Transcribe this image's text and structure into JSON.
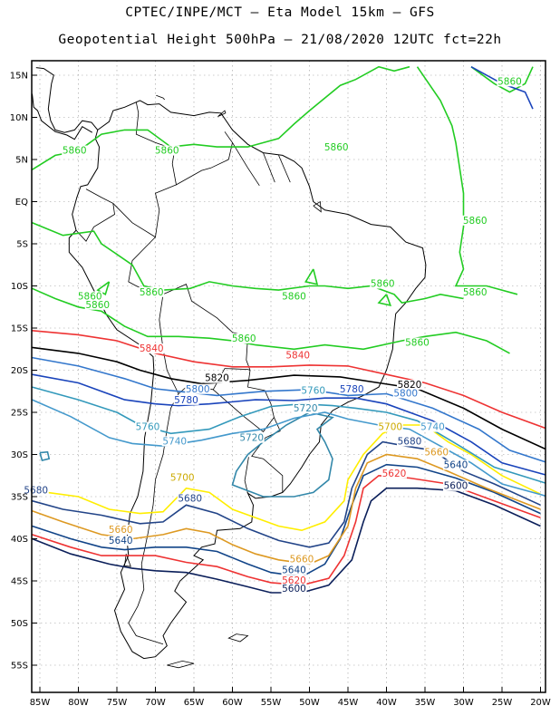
{
  "title": {
    "line1": "CPTEC/INPE/MCT –  Eta Model 15km – GFS",
    "line2": "Geopotential Height 500hPa – 21/08/2020 12UTC fct=22h"
  },
  "axes": {
    "lon_ticks": [
      "85W",
      "80W",
      "75W",
      "70W",
      "65W",
      "60W",
      "55W",
      "50W",
      "45W",
      "40W",
      "35W",
      "30W",
      "25W",
      "20W"
    ],
    "lat_ticks": [
      "15N",
      "10N",
      "5N",
      "EQ",
      "5S",
      "10S",
      "15S",
      "20S",
      "25S",
      "30S",
      "35S",
      "40S",
      "45S",
      "50S",
      "55S"
    ]
  },
  "contours": [
    {
      "level": "5860",
      "color": "#22cc22"
    },
    {
      "level": "5840",
      "color": "#ee3333"
    },
    {
      "level": "5820",
      "color": "#000000"
    },
    {
      "level": "5800",
      "color": "#3377cc"
    },
    {
      "level": "5780",
      "color": "#1a44bb"
    },
    {
      "level": "5760",
      "color": "#3399bb"
    },
    {
      "level": "5740",
      "color": "#4499cc"
    },
    {
      "level": "5720",
      "color": "#3388aa"
    },
    {
      "level": "5700",
      "color": "#ffee00"
    },
    {
      "level": "5680",
      "color": "#224488"
    },
    {
      "level": "5660",
      "color": "#dd9922"
    },
    {
      "level": "5640",
      "color": "#114488"
    },
    {
      "level": "5620",
      "color": "#ee3333"
    },
    {
      "level": "5600",
      "color": "#0b1f5a"
    }
  ],
  "labels": [
    {
      "text": "5860",
      "lon": 46.5,
      "lat": 6.2,
      "color": "#22cc22"
    },
    {
      "text": "5860",
      "lon": 68.5,
      "lat": 5.8,
      "color": "#22cc22"
    },
    {
      "text": "5860",
      "lon": 80.5,
      "lat": 5.8,
      "color": "#22cc22"
    },
    {
      "text": "5860",
      "lon": 24.0,
      "lat": 14.0,
      "color": "#22cc22"
    },
    {
      "text": "5860",
      "lon": 28.5,
      "lat": -2.5,
      "color": "#22cc22"
    },
    {
      "text": "5860",
      "lon": 28.5,
      "lat": -11.0,
      "color": "#22cc22"
    },
    {
      "text": "5860",
      "lon": 70.5,
      "lat": -11.0,
      "color": "#22cc22"
    },
    {
      "text": "5860",
      "lon": 78.5,
      "lat": -11.5,
      "color": "#22cc22"
    },
    {
      "text": "5860",
      "lon": 77.5,
      "lat": -12.5,
      "color": "#22cc22"
    },
    {
      "text": "5860",
      "lon": 52.0,
      "lat": -11.5,
      "color": "#22cc22"
    },
    {
      "text": "5860",
      "lon": 40.5,
      "lat": -10.0,
      "color": "#22cc22"
    },
    {
      "text": "5860",
      "lon": 58.5,
      "lat": -16.5,
      "color": "#22cc22"
    },
    {
      "text": "5860",
      "lon": 36.0,
      "lat": -17.0,
      "color": "#22cc22"
    },
    {
      "text": "5840",
      "lon": 70.5,
      "lat": -17.7,
      "color": "#ee3333"
    },
    {
      "text": "5840",
      "lon": 51.5,
      "lat": -18.5,
      "color": "#ee3333"
    },
    {
      "text": "5820",
      "lon": 62.0,
      "lat": -21.2,
      "color": "#000000"
    },
    {
      "text": "5820",
      "lon": 37.0,
      "lat": -22.0,
      "color": "#000000"
    },
    {
      "text": "5800",
      "lon": 64.5,
      "lat": -22.5,
      "color": "#3377cc"
    },
    {
      "text": "5800",
      "lon": 37.5,
      "lat": -23.0,
      "color": "#3377cc"
    },
    {
      "text": "5780",
      "lon": 66.0,
      "lat": -23.8,
      "color": "#1a44bb"
    },
    {
      "text": "5780",
      "lon": 44.5,
      "lat": -22.5,
      "color": "#1a44bb"
    },
    {
      "text": "5760",
      "lon": 49.5,
      "lat": -22.7,
      "color": "#3399bb"
    },
    {
      "text": "5760",
      "lon": 71.0,
      "lat": -27.0,
      "color": "#3399bb"
    },
    {
      "text": "5740",
      "lon": 67.5,
      "lat": -28.7,
      "color": "#4499cc"
    },
    {
      "text": "5740",
      "lon": 34.0,
      "lat": -27.0,
      "color": "#4499cc"
    },
    {
      "text": "5720",
      "lon": 50.5,
      "lat": -24.8,
      "color": "#3388aa"
    },
    {
      "text": "5720",
      "lon": 57.5,
      "lat": -28.3,
      "color": "#3388aa"
    },
    {
      "text": "5700",
      "lon": 39.5,
      "lat": -27.0,
      "color": "#ccaa00"
    },
    {
      "text": "5700",
      "lon": 66.5,
      "lat": -33.0,
      "color": "#ccaa00"
    },
    {
      "text": "5680",
      "lon": 37.0,
      "lat": -28.7,
      "color": "#224488"
    },
    {
      "text": "5680",
      "lon": 65.5,
      "lat": -35.5,
      "color": "#224488"
    },
    {
      "text": "5660",
      "lon": 33.5,
      "lat": -30.0,
      "color": "#dd9922"
    },
    {
      "text": "5660",
      "lon": 74.5,
      "lat": -39.2,
      "color": "#dd9922"
    },
    {
      "text": "5660",
      "lon": 51.0,
      "lat": -42.7,
      "color": "#dd9922"
    },
    {
      "text": "5640",
      "lon": 31.0,
      "lat": -31.5,
      "color": "#114488"
    },
    {
      "text": "5640",
      "lon": 74.5,
      "lat": -40.5,
      "color": "#114488"
    },
    {
      "text": "5640",
      "lon": 52.0,
      "lat": -44.0,
      "color": "#114488"
    },
    {
      "text": "5620",
      "lon": 39.0,
      "lat": -32.5,
      "color": "#ee3333"
    },
    {
      "text": "5620",
      "lon": 52.0,
      "lat": -45.2,
      "color": "#ee3333"
    },
    {
      "text": "5600",
      "lon": 31.0,
      "lat": -34.0,
      "color": "#0b1f5a"
    },
    {
      "text": "5600",
      "lon": 52.0,
      "lat": -46.2,
      "color": "#0b1f5a"
    },
    {
      "text": "5680",
      "lon": 85.5,
      "lat": -34.5,
      "color": "#224488"
    }
  ]
}
